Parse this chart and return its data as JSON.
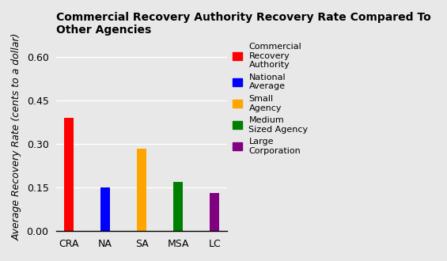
{
  "title": "Commercial Recovery Authority Recovery Rate Compared To\nOther Agencies",
  "categories": [
    "CRA",
    "NA",
    "SA",
    "MSA",
    "LC"
  ],
  "values": [
    0.39,
    0.15,
    0.285,
    0.17,
    0.13
  ],
  "bar_colors": [
    "#ff0000",
    "#0000ff",
    "#ffa500",
    "#008000",
    "#800080"
  ],
  "ylabel": "Average Recovery Rate (cents to a dollar)",
  "ylim": [
    0,
    0.65
  ],
  "yticks": [
    0.0,
    0.15,
    0.3,
    0.45,
    0.6
  ],
  "legend_labels": [
    "Commercial\nRecovery\nAuthority",
    "National\nAverage",
    "Small\nAgency",
    "Medium\nSized Agency",
    "Large\nCorporation"
  ],
  "legend_colors": [
    "#ff0000",
    "#0000ff",
    "#ffa500",
    "#008000",
    "#800080"
  ],
  "background_color": "#e8e8e8",
  "title_fontsize": 10,
  "ylabel_fontsize": 9,
  "bar_width": 0.25
}
